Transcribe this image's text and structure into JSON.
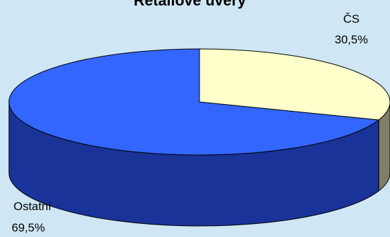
{
  "chart_data": {
    "type": "pie",
    "style": "3d",
    "title": "Retailové úvěry",
    "categories": [
      "ČS",
      "Ostatní"
    ],
    "values": [
      30.5,
      69.5
    ],
    "value_labels": [
      "30,5%",
      "69,5%"
    ],
    "colors": {
      "ČS": {
        "top": "#ffffcc",
        "side": "#808066"
      },
      "Ostatní": {
        "top": "#3366ff",
        "side": "#1a3399"
      }
    },
    "background": "#cfe6f4"
  }
}
